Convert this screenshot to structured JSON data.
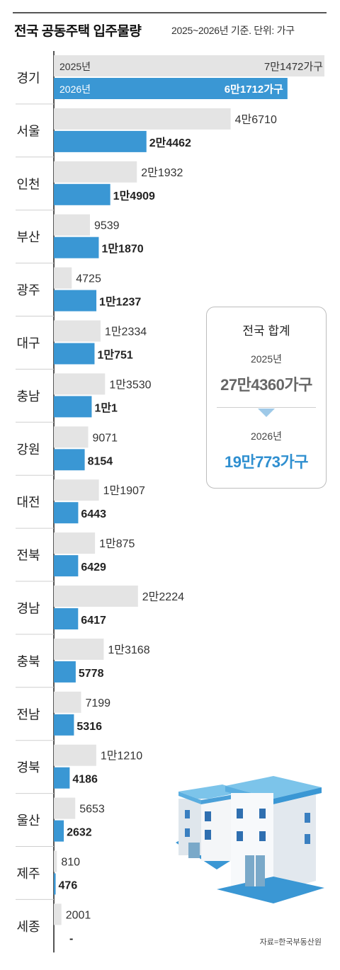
{
  "title": "전국 공동주택 입주물량",
  "subtitle": "2025~2026년 기준. 단위: 가구",
  "source": "자료=한국부동산원",
  "summary": {
    "title": "전국 합계",
    "year1": "2025년",
    "value1": "27만4360가구",
    "year2": "2026년",
    "value2": "19만773가구"
  },
  "colors": {
    "bar_2025": "#e4e4e4",
    "bar_2026": "#3a97d4",
    "text_blue": "#2f8fd0"
  },
  "chart_data": {
    "type": "bar",
    "orientation": "horizontal",
    "title": "전국 공동주택 입주물량",
    "unit": "가구",
    "categories": [
      "경기",
      "서울",
      "인천",
      "부산",
      "광주",
      "대구",
      "충남",
      "강원",
      "대전",
      "전북",
      "경남",
      "충북",
      "전남",
      "경북",
      "울산",
      "제주",
      "세종"
    ],
    "series": [
      {
        "name": "2025년",
        "values": [
          71472,
          46710,
          21932,
          9539,
          4725,
          12334,
          13530,
          9071,
          11907,
          10875,
          22224,
          13168,
          7199,
          11210,
          5653,
          810,
          2001
        ],
        "labels": [
          "7만1472가구",
          "4만6710",
          "2만1932",
          "9539",
          "4725",
          "1만2334",
          "1만3530",
          "9071",
          "1만1907",
          "1만875",
          "2만2224",
          "1만3168",
          "7199",
          "1만1210",
          "5653",
          "810",
          "2001"
        ]
      },
      {
        "name": "2026년",
        "values": [
          61712,
          24462,
          14909,
          11870,
          11237,
          10751,
          10001,
          8154,
          6443,
          6429,
          6417,
          5778,
          5316,
          4186,
          2632,
          476,
          0
        ],
        "labels": [
          "6만1712가구",
          "2만4462",
          "1만4909",
          "1만1870",
          "1만1237",
          "1만751",
          "1만1",
          "8154",
          "6443",
          "6429",
          "6417",
          "5778",
          "5316",
          "4186",
          "2632",
          "476",
          "-"
        ]
      }
    ],
    "xlim": [
      0,
      71472
    ],
    "legend": "inside-first-bar",
    "grid": false
  }
}
